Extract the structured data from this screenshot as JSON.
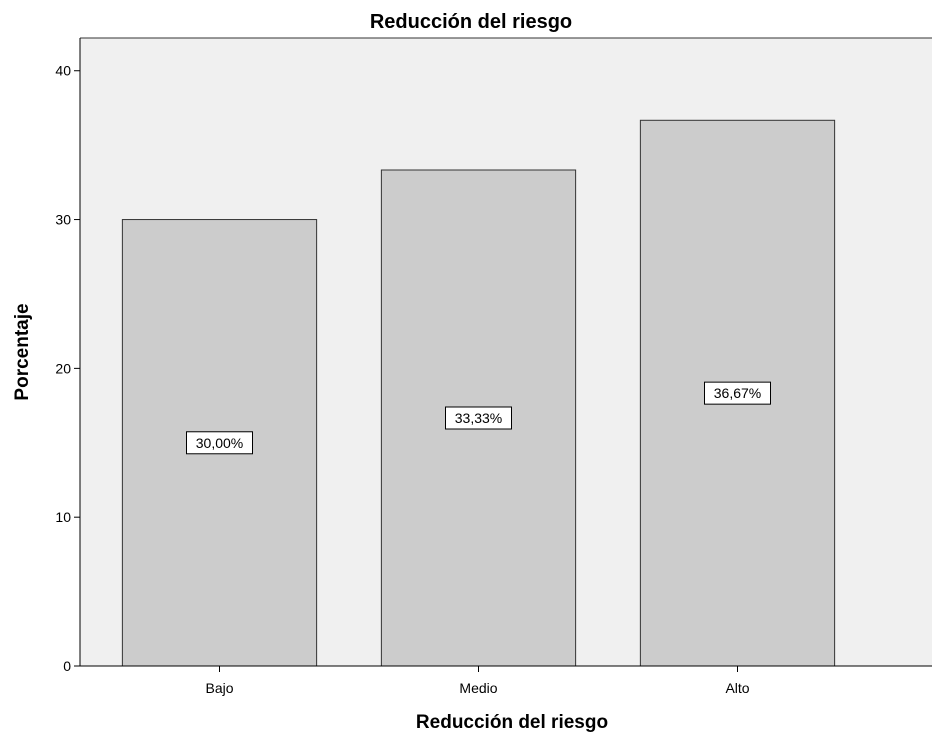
{
  "chart_data": {
    "type": "bar",
    "title": "Reducción del riesgo",
    "xlabel": "Reducción del riesgo",
    "ylabel": "Porcentaje",
    "categories": [
      "Bajo",
      "Medio",
      "Alto"
    ],
    "values": [
      30.0,
      33.33,
      36.67
    ],
    "data_labels": [
      "30,00%",
      "33,33%",
      "36,67%"
    ],
    "ylim": [
      0,
      42.2
    ],
    "yticks": [
      0,
      10,
      20,
      30,
      40
    ],
    "grid": false,
    "legend": "none",
    "colors": {
      "plot_background": "#f0f0f0",
      "bar_fill": "#cccccc",
      "bar_stroke": "#333333",
      "label_box_fill": "#ffffff"
    }
  }
}
